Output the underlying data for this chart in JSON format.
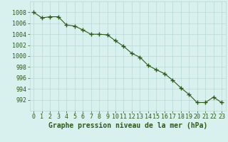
{
  "x": [
    0,
    1,
    2,
    3,
    4,
    5,
    6,
    7,
    8,
    9,
    10,
    11,
    12,
    13,
    14,
    15,
    16,
    17,
    18,
    19,
    20,
    21,
    22,
    23
  ],
  "y": [
    1008.0,
    1007.0,
    1007.2,
    1007.2,
    1005.7,
    1005.5,
    1004.8,
    1004.0,
    1004.0,
    1003.9,
    1002.8,
    1001.8,
    1000.5,
    999.8,
    998.3,
    997.5,
    996.8,
    995.6,
    994.2,
    993.0,
    991.5,
    991.5,
    992.5,
    991.5
  ],
  "line_color": "#2d5a1b",
  "marker_color": "#2d5a1b",
  "background_color": "#d8f0ee",
  "grid_color": "#b8d8d4",
  "title": "Graphe pression niveau de la mer (hPa)",
  "ylim": [
    990,
    1010
  ],
  "xlim": [
    -0.5,
    23.5
  ],
  "yticks": [
    992,
    994,
    996,
    998,
    1000,
    1002,
    1004,
    1006,
    1008
  ],
  "xticks": [
    0,
    1,
    2,
    3,
    4,
    5,
    6,
    7,
    8,
    9,
    10,
    11,
    12,
    13,
    14,
    15,
    16,
    17,
    18,
    19,
    20,
    21,
    22,
    23
  ],
  "tick_label_color": "#2d5a1b",
  "title_color": "#2d5a1b",
  "title_fontsize": 7.0,
  "tick_fontsize": 6.0
}
